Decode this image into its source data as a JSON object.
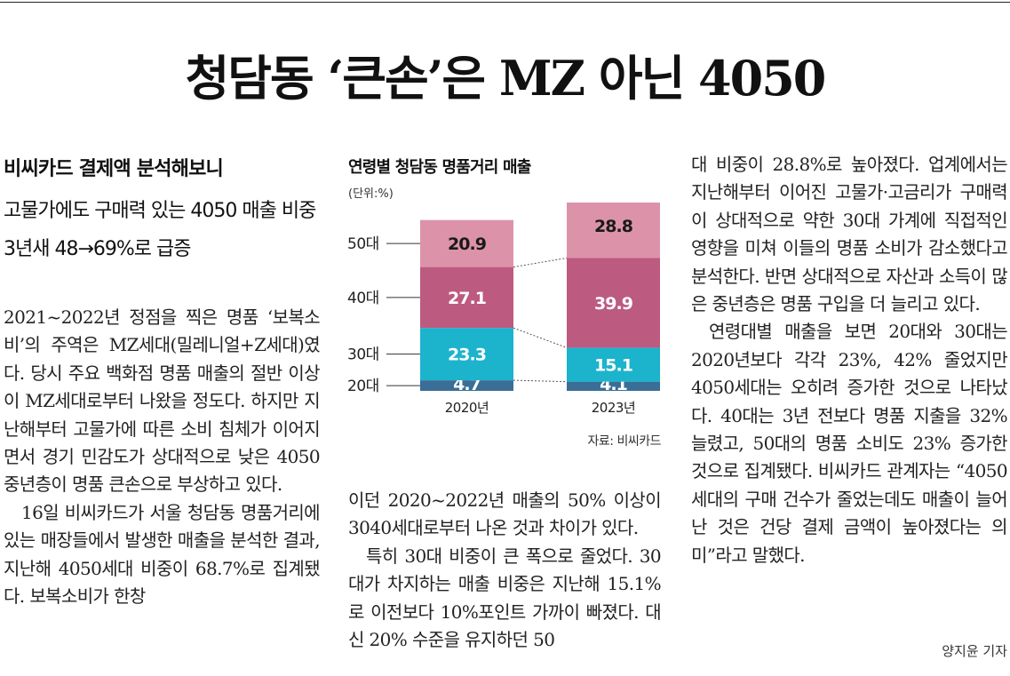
{
  "article": {
    "headline": "청담동 ‘큰손’은 MZ 아닌 4050",
    "subhead_1": "비씨카드 결제액 분석해보니",
    "subhead_2": "고물가에도 구매력 있는 4050 매출 비중 3년새 48→69%로 급증",
    "byline": "양지윤 기자",
    "col1_p1": "2021~2022년 정점을 찍은 명품 ‘보복소비’의 주역은 MZ세대(밀레니얼+Z세대)였다. 당시 주요 백화점 명품 매출의 절반 이상이 MZ세대로부터 나왔을 정도다. 하지만 지난해부터 고물가에 따른 소비 침체가 이어지면서 경기 민감도가 상대적으로 낮은 4050 중년층이 명품 큰손으로 부상하고 있다.",
    "col1_p2": "16일 비씨카드가 서울 청담동 명품거리에 있는 매장들에서 발생한 매출을 분석한 결과, 지난해 4050세대 비중이 68.7%로 집계됐다. 보복소비가 한창",
    "col2_p1": "이던 2020~2022년 매출의 50% 이상이 3040세대로부터 나온 것과 차이가 있다.",
    "col2_p2": "특히 30대 비중이 큰 폭으로 줄었다. 30대가 차지하는 매출 비중은 지난해 15.1%로 이전보다 10%포인트 가까이 빠졌다. 대신 20% 수준을 유지하던 50",
    "col3_p1": "대 비중이 28.8%로 높아졌다. 업계에서는 지난해부터 이어진 고물가·고금리가 구매력이 상대적으로 약한 30대 가계에 직접적인 영향을 미쳐 이들의 명품 소비가 감소했다고 분석한다. 반면 상대적으로 자산과 소득이 많은 중년층은 명품 구입을 더 늘리고 있다.",
    "col3_p2": "연령대별 매출을 보면 20대와 30대는 2020년보다 각각 23%, 42% 줄었지만 4050세대는 오히려 증가한 것으로 나타났다. 40대는 3년 전보다 명품 지출을 32% 늘렸고, 50대의 명품 소비도 23% 증가한 것으로 집계됐다. 비씨카드 관계자는 “4050세대의 구매 건수가 줄었는데도 매출이 늘어난 것은 건당 결제 금액이 높아졌다는 의미”라고 말했다."
  },
  "chart_data": {
    "type": "bar",
    "stacked": true,
    "title": "연령별 청담동 명품거리 매출",
    "unit": "(단위:%)",
    "source": "자료: 비씨카드",
    "categories": [
      "2020년",
      "2023년"
    ],
    "series": [
      {
        "name": "20대",
        "values": [
          4.7,
          4.1
        ],
        "color": "#3a6e96"
      },
      {
        "name": "30대",
        "values": [
          23.3,
          15.1
        ],
        "color": "#1cb3cd"
      },
      {
        "name": "40대",
        "values": [
          27.1,
          39.9
        ],
        "color": "#bd5a7f"
      },
      {
        "name": "50대",
        "values": [
          20.9,
          28.8
        ],
        "color": "#dc93a9"
      }
    ]
  }
}
